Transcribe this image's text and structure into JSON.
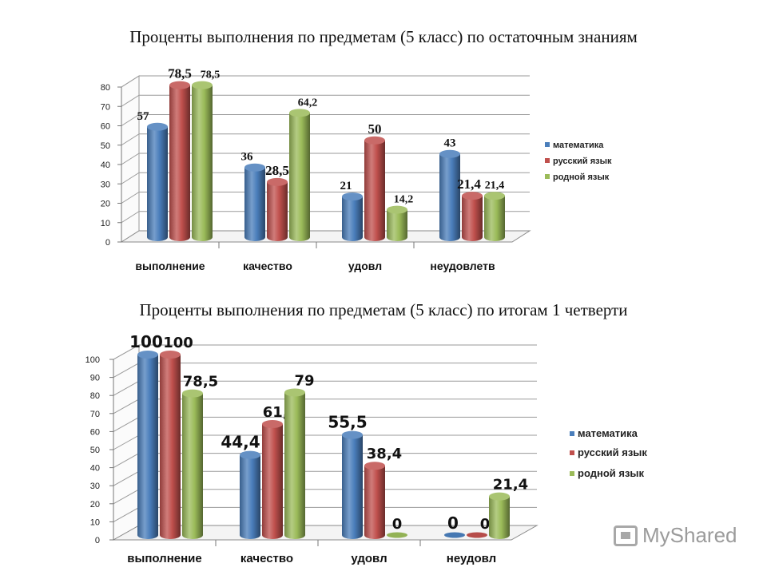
{
  "chart_data": [
    {
      "type": "bar",
      "title": "Проценты выполнения по предметам (5 класс) по остаточным знаниям",
      "categories": [
        "выполнение",
        "качество",
        "удовл",
        "неудовлетв"
      ],
      "series": [
        {
          "name": "математика",
          "color": "#4a7ebb",
          "values": [
            57,
            36,
            21,
            43
          ],
          "labels": [
            "57",
            "36",
            "21",
            "43"
          ]
        },
        {
          "name": "русский язык",
          "color": "#c0504d",
          "values": [
            78.5,
            28.5,
            50,
            21.4
          ],
          "labels": [
            "78,5",
            "28,5",
            "50",
            "21,4"
          ]
        },
        {
          "name": "родной язык",
          "color": "#9bbb59",
          "values": [
            78.5,
            64.2,
            14.2,
            21.4
          ],
          "labels": [
            "78,5",
            "64,2",
            "14,2",
            "21,4"
          ]
        }
      ],
      "ylim": [
        0,
        80
      ],
      "yticks": [
        "0",
        "10",
        "20",
        "30",
        "40",
        "50",
        "60",
        "70",
        "80"
      ],
      "grid": true,
      "legend": "right"
    },
    {
      "type": "bar",
      "title": "Проценты выполнения по предметам (5 класс) по итогам 1 четверти",
      "categories": [
        "выполнение",
        "качество",
        "удовл",
        "неудовл"
      ],
      "series": [
        {
          "name": "математика",
          "color": "#4a7ebb",
          "values": [
            100,
            44.4,
            55.5,
            0
          ],
          "labels": [
            "100",
            "44,4",
            "55,5",
            "0"
          ]
        },
        {
          "name": "русский язык",
          "color": "#c0504d",
          "values": [
            100,
            61.5,
            38.4,
            0
          ],
          "labels": [
            "100",
            "61,5",
            "38,4",
            "0"
          ]
        },
        {
          "name": "родной язык",
          "color": "#9bbb59",
          "values": [
            78.5,
            79,
            0,
            21.4
          ],
          "labels": [
            "78,5",
            "79",
            "0",
            "21,4"
          ]
        }
      ],
      "ylim": [
        0,
        100
      ],
      "yticks": [
        "0",
        "10",
        "20",
        "30",
        "40",
        "50",
        "60",
        "70",
        "80",
        "90",
        "100"
      ],
      "grid": true,
      "legend": "right"
    }
  ],
  "watermark": "MyShared"
}
